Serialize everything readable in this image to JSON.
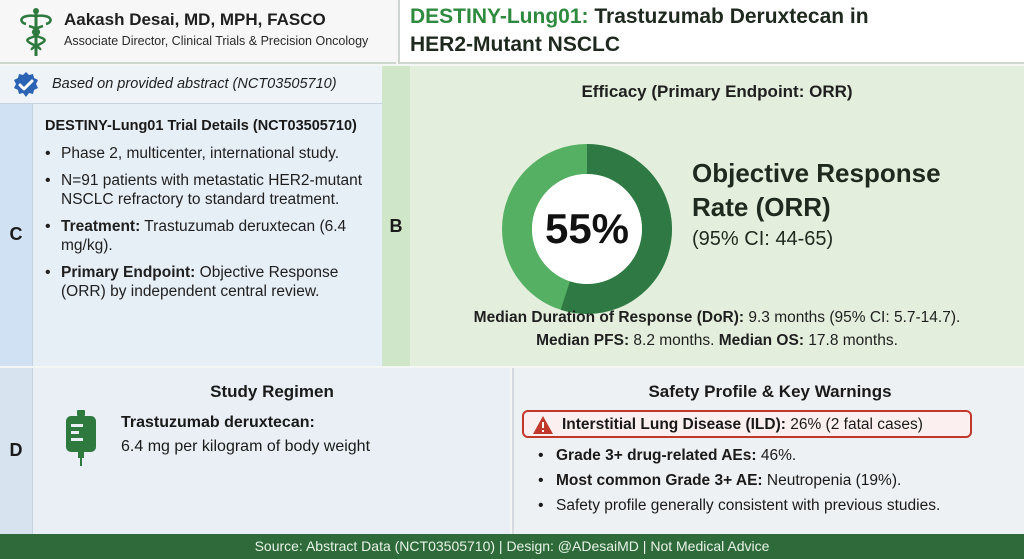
{
  "header": {
    "author_name": "Aakash Desai, MD, MPH, FASCO",
    "author_role": "Associate Director, Clinical Trials & Precision Oncology",
    "title_accent": "DESTINY-Lung01:",
    "title_rest": " Trastuzumab Deruxtecan in",
    "title_line2": "HER2-Mutant NSCLC",
    "logo_icon": "caduceus-icon"
  },
  "source_note": {
    "icon": "verified-check-icon",
    "text": "Based on provided abstract (NCT03505710)"
  },
  "panel_c": {
    "letter": "C",
    "title": "DESTINY-Lung01 Trial Details (NCT03505710)",
    "items": [
      {
        "bold": "",
        "text": "Phase 2, multicenter, international study."
      },
      {
        "bold": "",
        "text": "N=91 patients with metastatic HER2-mutant NSCLC refractory to standard treatment."
      },
      {
        "bold": "Treatment:",
        "text": " Trastuzumab deruxtecan (6.4 mg/kg)."
      },
      {
        "bold": "Primary Endpoint:",
        "text": " Objective Response (ORR) by independent central review."
      }
    ]
  },
  "panel_b": {
    "letter": "B",
    "title": "Efficacy (Primary Endpoint: ORR)",
    "orr_value": 55,
    "orr_display": "55%",
    "orr_label_line1": "Objective Response",
    "orr_label_line2": "Rate (ORR)",
    "orr_ci": "(95% CI: 44-65)",
    "dor_label": "Median Duration of Response (DoR):",
    "dor_value": " 9.3 months (95% CI: 5.7-14.7).",
    "pfs_label": "Median PFS:",
    "pfs_value": " 8.2 months. ",
    "os_label": "Median OS:",
    "os_value": " 17.8 months.",
    "colors": {
      "filled": "#2f7a44",
      "remaining": "#55b063",
      "center": "#ffffff"
    }
  },
  "panel_d": {
    "letter": "D",
    "title": "Study Regimen",
    "icon": "iv-bag-icon",
    "drug": "Trastuzumab deruxtecan:",
    "dose": "6.4 mg per kilogram of body weight"
  },
  "safety": {
    "title": "Safety Profile & Key Warnings",
    "warning_icon": "warning-triangle-icon",
    "ild_label": "Interstitial Lung Disease (ILD):",
    "ild_value": " 26% (2 fatal cases)",
    "items": [
      {
        "bold": "Grade 3+ drug-related AEs:",
        "text": " 46%."
      },
      {
        "bold": "Most common Grade 3+ AE:",
        "text": " Neutropenia (19%)."
      },
      {
        "bold": "",
        "text": "Safety profile generally consistent with previous studies."
      }
    ]
  },
  "footer": {
    "text": "Source: Abstract Data (NCT03505710) | Design: @ADesaiMD | Not Medical Advice"
  }
}
